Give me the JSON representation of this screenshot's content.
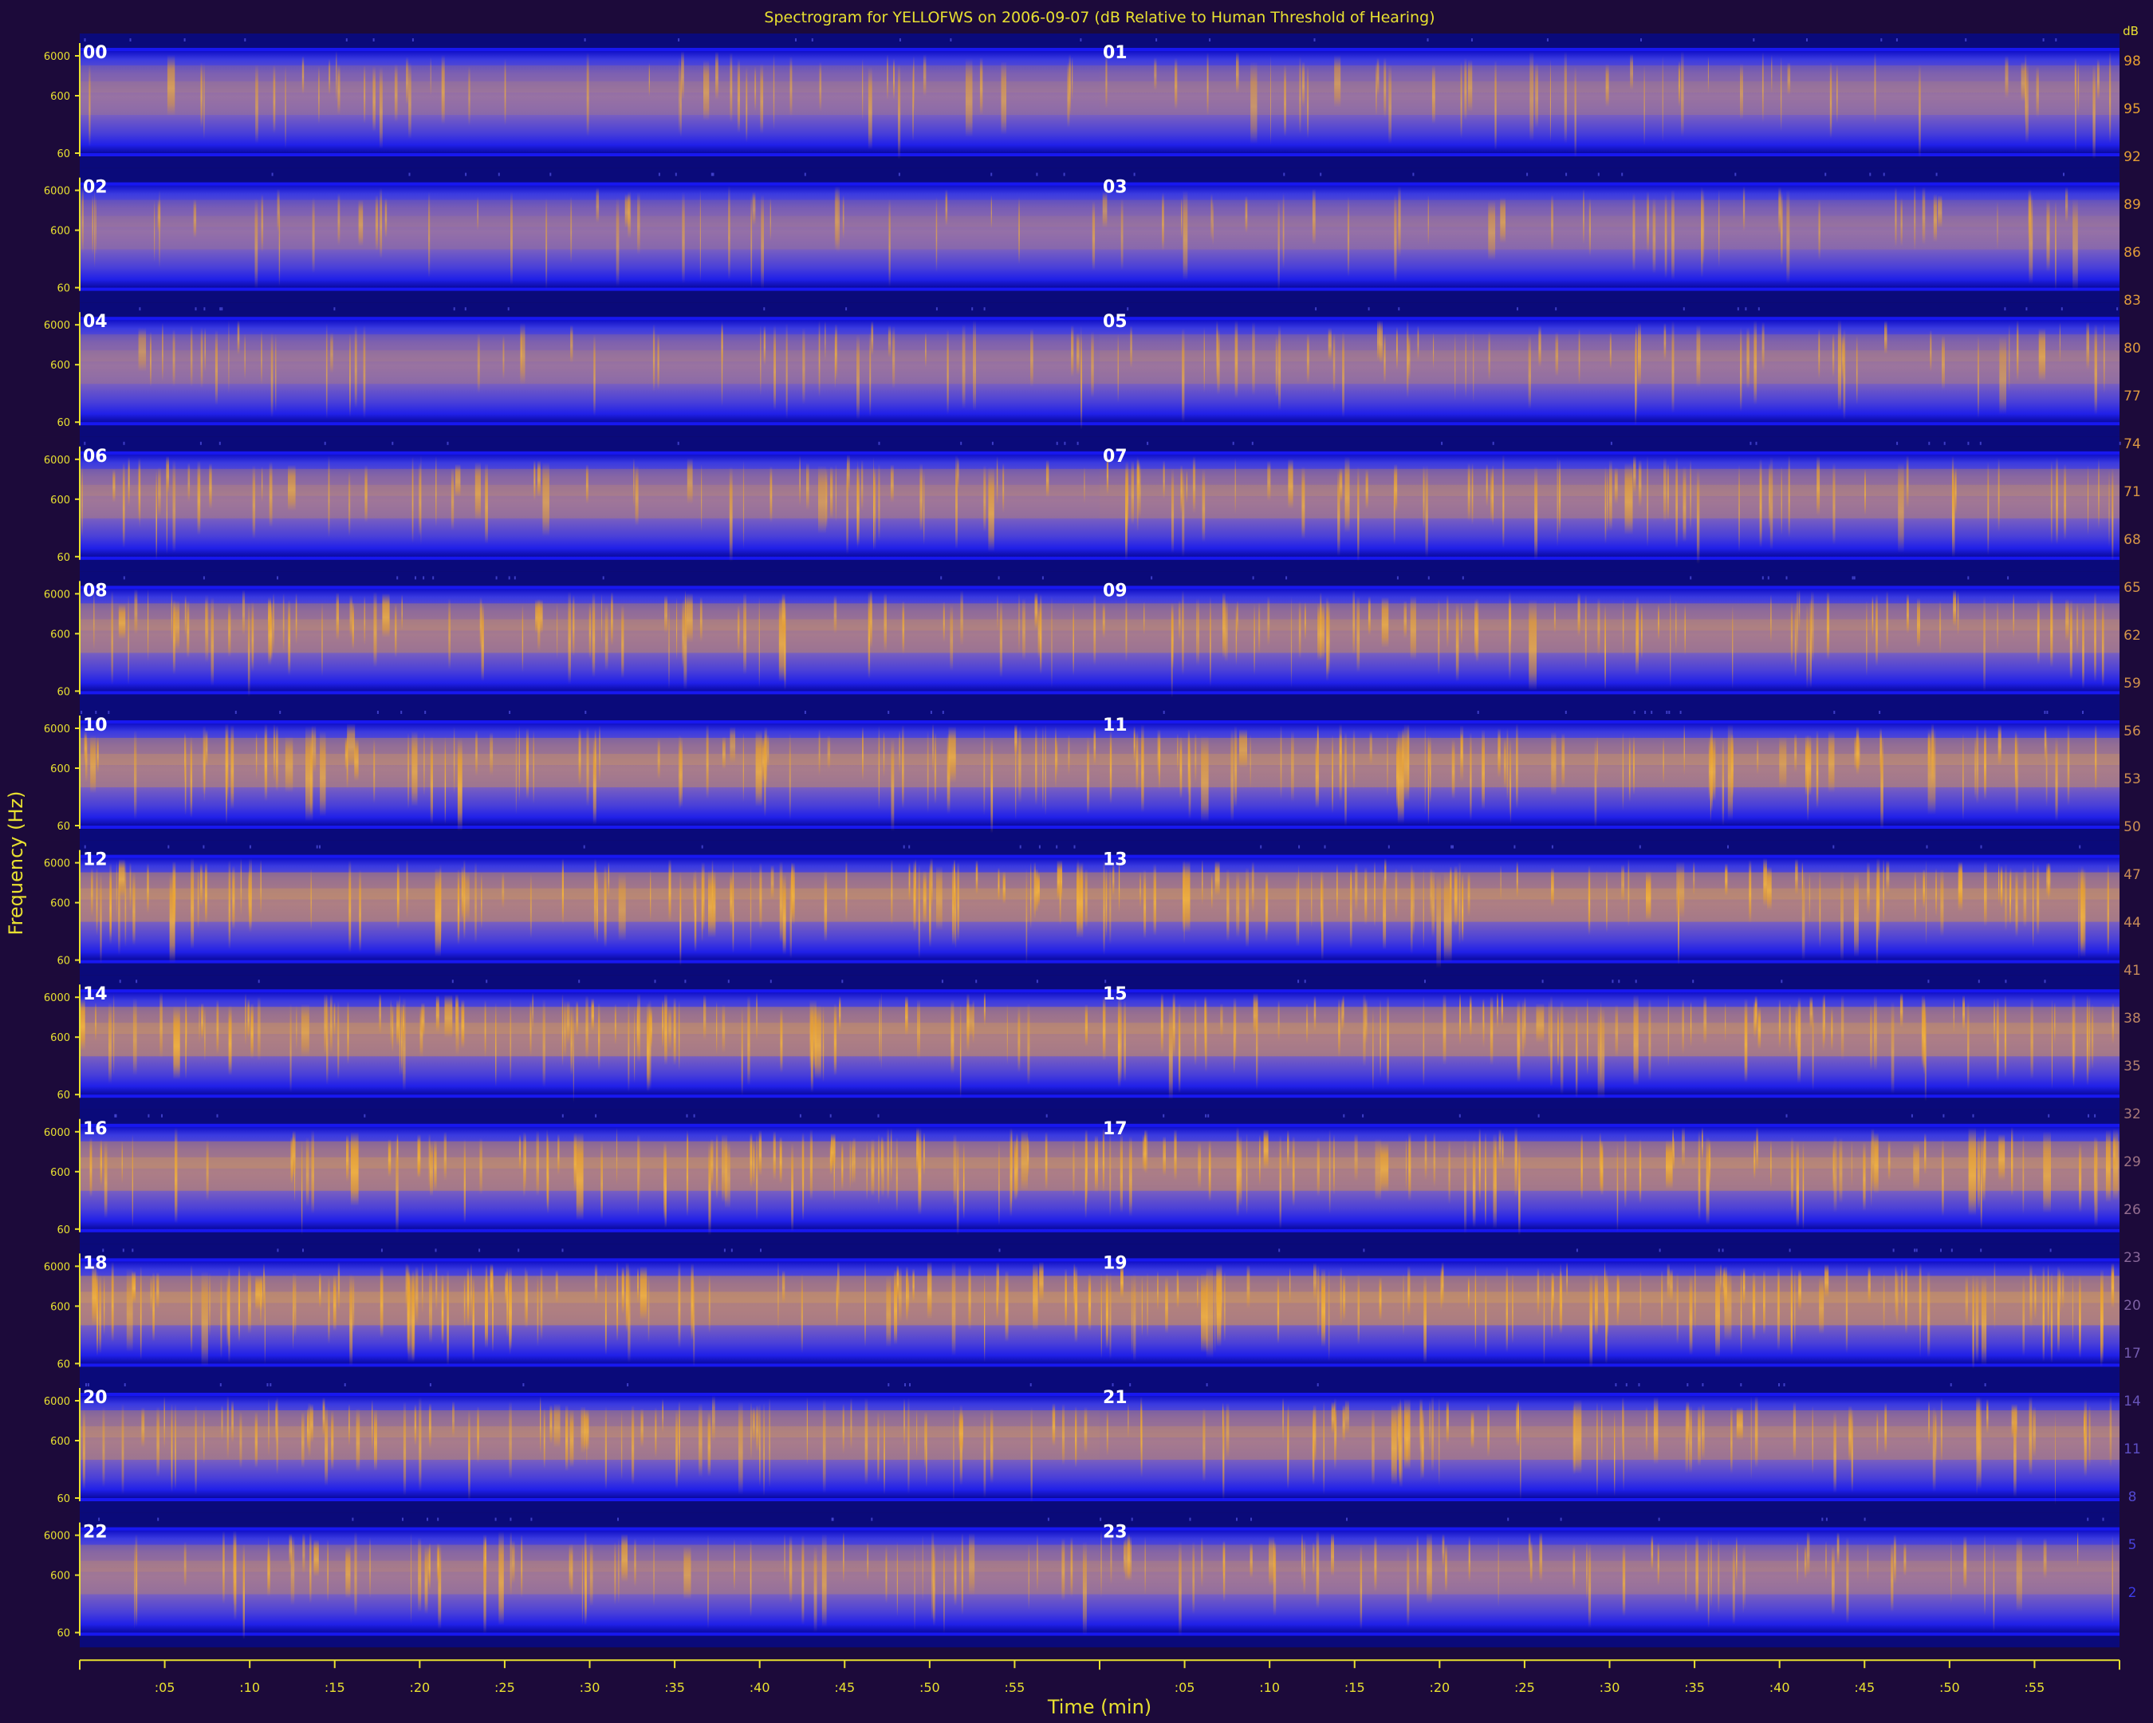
{
  "chart_data": {
    "type": "heatmap",
    "title": "Spectrogram for YELLOFWS on 2006-09-07 (dB Relative to Human Threshold of Hearing)",
    "xlabel": "Time (min)",
    "ylabel": "Frequency (Hz)",
    "x_tick_labels": [
      ":05",
      ":10",
      ":15",
      ":20",
      ":25",
      ":30",
      ":35",
      ":40",
      ":45",
      ":50",
      ":55"
    ],
    "y_tick_labels": [
      "6000",
      "600",
      "60"
    ],
    "hour_labels": [
      "00",
      "01",
      "02",
      "03",
      "04",
      "05",
      "06",
      "07",
      "08",
      "09",
      "10",
      "11",
      "12",
      "13",
      "14",
      "15",
      "16",
      "17",
      "18",
      "19",
      "20",
      "21",
      "22",
      "23"
    ],
    "colorbar_labels": [
      "98",
      "95",
      "92",
      "89",
      "86",
      "83",
      "80",
      "77",
      "74",
      "71",
      "68",
      "65",
      "62",
      "59",
      "56",
      "53",
      "50",
      "47",
      "44",
      "41",
      "38",
      "35",
      "32",
      "29",
      "26",
      "23",
      "20",
      "17",
      "14",
      "11",
      "8",
      "5",
      "2"
    ],
    "colorbar_unit": "dB",
    "colorbar_range": [
      0,
      100
    ],
    "hour_activity": [
      0.28,
      0.3,
      0.22,
      0.24,
      0.3,
      0.36,
      0.42,
      0.48,
      0.55,
      0.55,
      0.6,
      0.62,
      0.7,
      0.7,
      0.7,
      0.68,
      0.68,
      0.66,
      0.75,
      0.78,
      0.6,
      0.55,
      0.45,
      0.42
    ],
    "colors": {
      "background": "#1c0a3a",
      "low": "#0a0a80",
      "mid": "#2a2ae8",
      "high": "#e8a030",
      "axis": "#e8e030",
      "text": "#ffffff"
    }
  }
}
